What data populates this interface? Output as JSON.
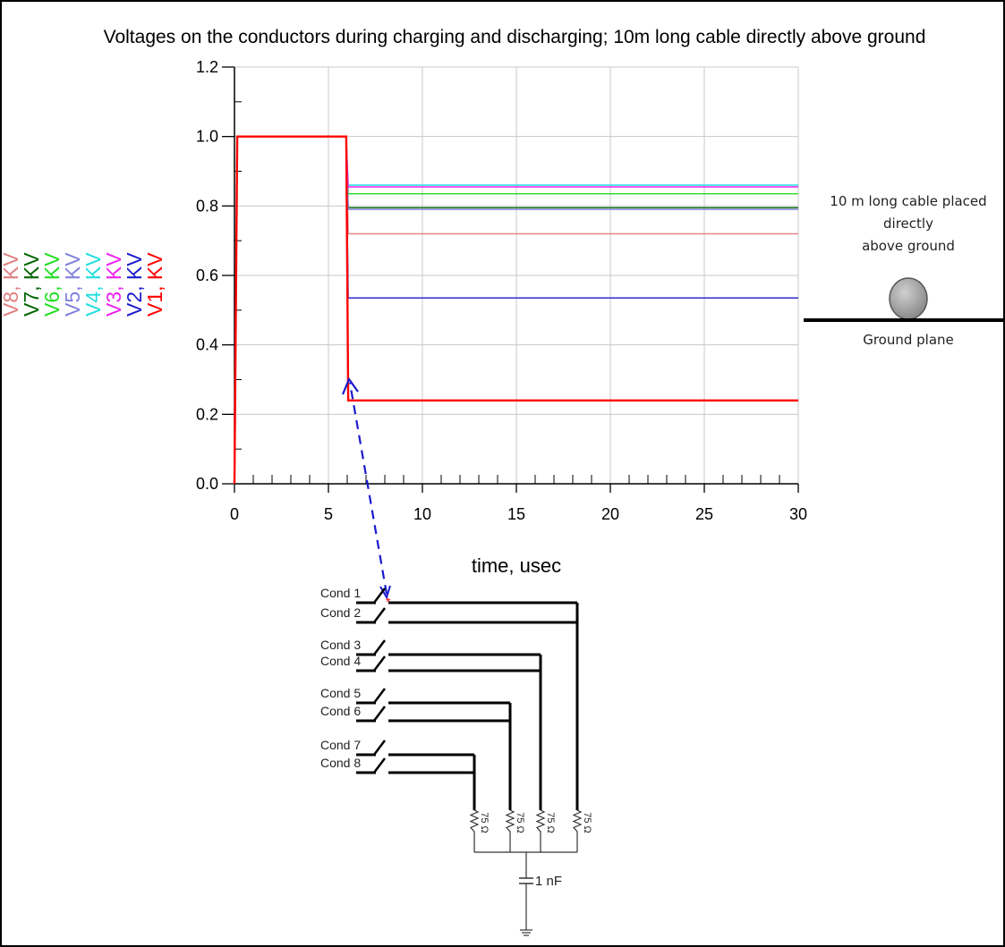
{
  "chart_data": {
    "type": "line",
    "title": "Voltages on the conductors during charging and discharging; 10m long cable directly above ground",
    "xlabel": "time, usec",
    "xlim": [
      0,
      30
    ],
    "ylim": [
      0,
      1.2
    ],
    "x_ticks": [
      "0",
      "5",
      "10",
      "15",
      "20",
      "25",
      "30"
    ],
    "y_ticks": [
      "0.0",
      "0.2",
      "0.4",
      "0.6",
      "0.8",
      "1.0",
      "1.2"
    ],
    "grid": true,
    "legend_placement": "left, rotated vertical",
    "series": [
      {
        "name": "V8, KV",
        "color": "#e08080",
        "x": [
          0,
          0.15,
          5.95,
          6.05,
          30
        ],
        "y": [
          0,
          1.0,
          1.0,
          0.72,
          0.72
        ]
      },
      {
        "name": "V7, KV",
        "color": "#006400",
        "x": [
          0,
          0.15,
          5.95,
          6.05,
          30
        ],
        "y": [
          0,
          1.0,
          1.0,
          0.795,
          0.795
        ]
      },
      {
        "name": "V6, KV",
        "color": "#22dd22",
        "x": [
          0,
          0.15,
          5.95,
          6.05,
          30
        ],
        "y": [
          0,
          1.0,
          1.0,
          0.835,
          0.835
        ]
      },
      {
        "name": "V5, KV",
        "color": "#8080dd",
        "x": [
          0,
          0.15,
          5.95,
          6.05,
          30
        ],
        "y": [
          0,
          1.0,
          1.0,
          0.79,
          0.79
        ]
      },
      {
        "name": "V4, KV",
        "color": "#22dddd",
        "x": [
          0,
          0.15,
          5.95,
          6.05,
          30
        ],
        "y": [
          0,
          1.0,
          1.0,
          0.86,
          0.86
        ]
      },
      {
        "name": "V3, KV",
        "color": "#ee22ee",
        "x": [
          0,
          0.15,
          5.95,
          6.05,
          30
        ],
        "y": [
          0,
          1.0,
          1.0,
          0.855,
          0.855
        ]
      },
      {
        "name": "V2, KV",
        "color": "#1a1acc",
        "x": [
          0,
          0.15,
          5.95,
          6.05,
          30
        ],
        "y": [
          0,
          1.0,
          1.0,
          0.535,
          0.535
        ]
      },
      {
        "name": "V1, KV",
        "color": "#ff0000",
        "x": [
          0,
          0.15,
          5.95,
          6.05,
          30
        ],
        "y": [
          0,
          1.0,
          1.0,
          0.24,
          0.24
        ]
      }
    ]
  },
  "inset": {
    "caption_line1": "10 m long cable placed",
    "caption_line2": "directly",
    "caption_line3": "above ground",
    "ground_label": "Ground plane"
  },
  "circuit": {
    "conductors": [
      "Cond 1",
      "Cond 2",
      "Cond 3",
      "Cond 4",
      "Cond 5",
      "Cond 6",
      "Cond 7",
      "Cond 8"
    ],
    "resistor_label": "75 Ω",
    "capacitor_label": "1 nF"
  }
}
